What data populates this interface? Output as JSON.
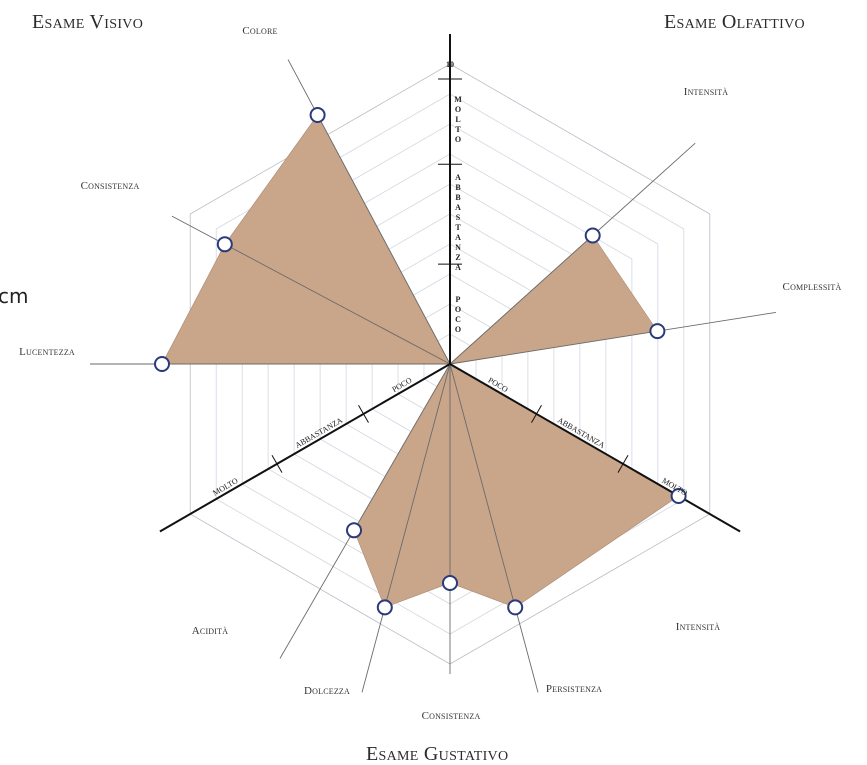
{
  "fragment_text": "cm",
  "sections": {
    "visivo": "Esame Visivo",
    "olfattivo": "Esame Olfattivo",
    "gustativo": "Esame Gustativo"
  },
  "scale": {
    "top_value": "10",
    "levels": [
      "POCO",
      "ABBASTANZA",
      "MOLTO"
    ]
  },
  "chart_data": {
    "type": "radar-sectors",
    "scale_max": 10,
    "fill_color": "#c9a58a",
    "marker_stroke": "#2a3a7a",
    "sections": [
      {
        "name": "Esame Visivo",
        "axes": [
          {
            "label": "Colore",
            "value": 9.4
          },
          {
            "label": "Consistenza",
            "value": 8.5
          },
          {
            "label": "Lucentezza",
            "value": 9.6
          }
        ]
      },
      {
        "name": "Esame Olfattivo",
        "axes": [
          {
            "label": "Intensità",
            "value": 6.4
          },
          {
            "label": "Complessità",
            "value": 7.0
          }
        ]
      },
      {
        "name": "Esame Gustativo",
        "axes": [
          {
            "label": "Acidità",
            "value": 6.4
          },
          {
            "label": "Dolcezza",
            "value": 8.4
          },
          {
            "label": "Consistenza",
            "value": 7.3
          },
          {
            "label": "Persistenza",
            "value": 8.4
          },
          {
            "label": "Intensità",
            "value": 8.8
          }
        ]
      }
    ]
  }
}
